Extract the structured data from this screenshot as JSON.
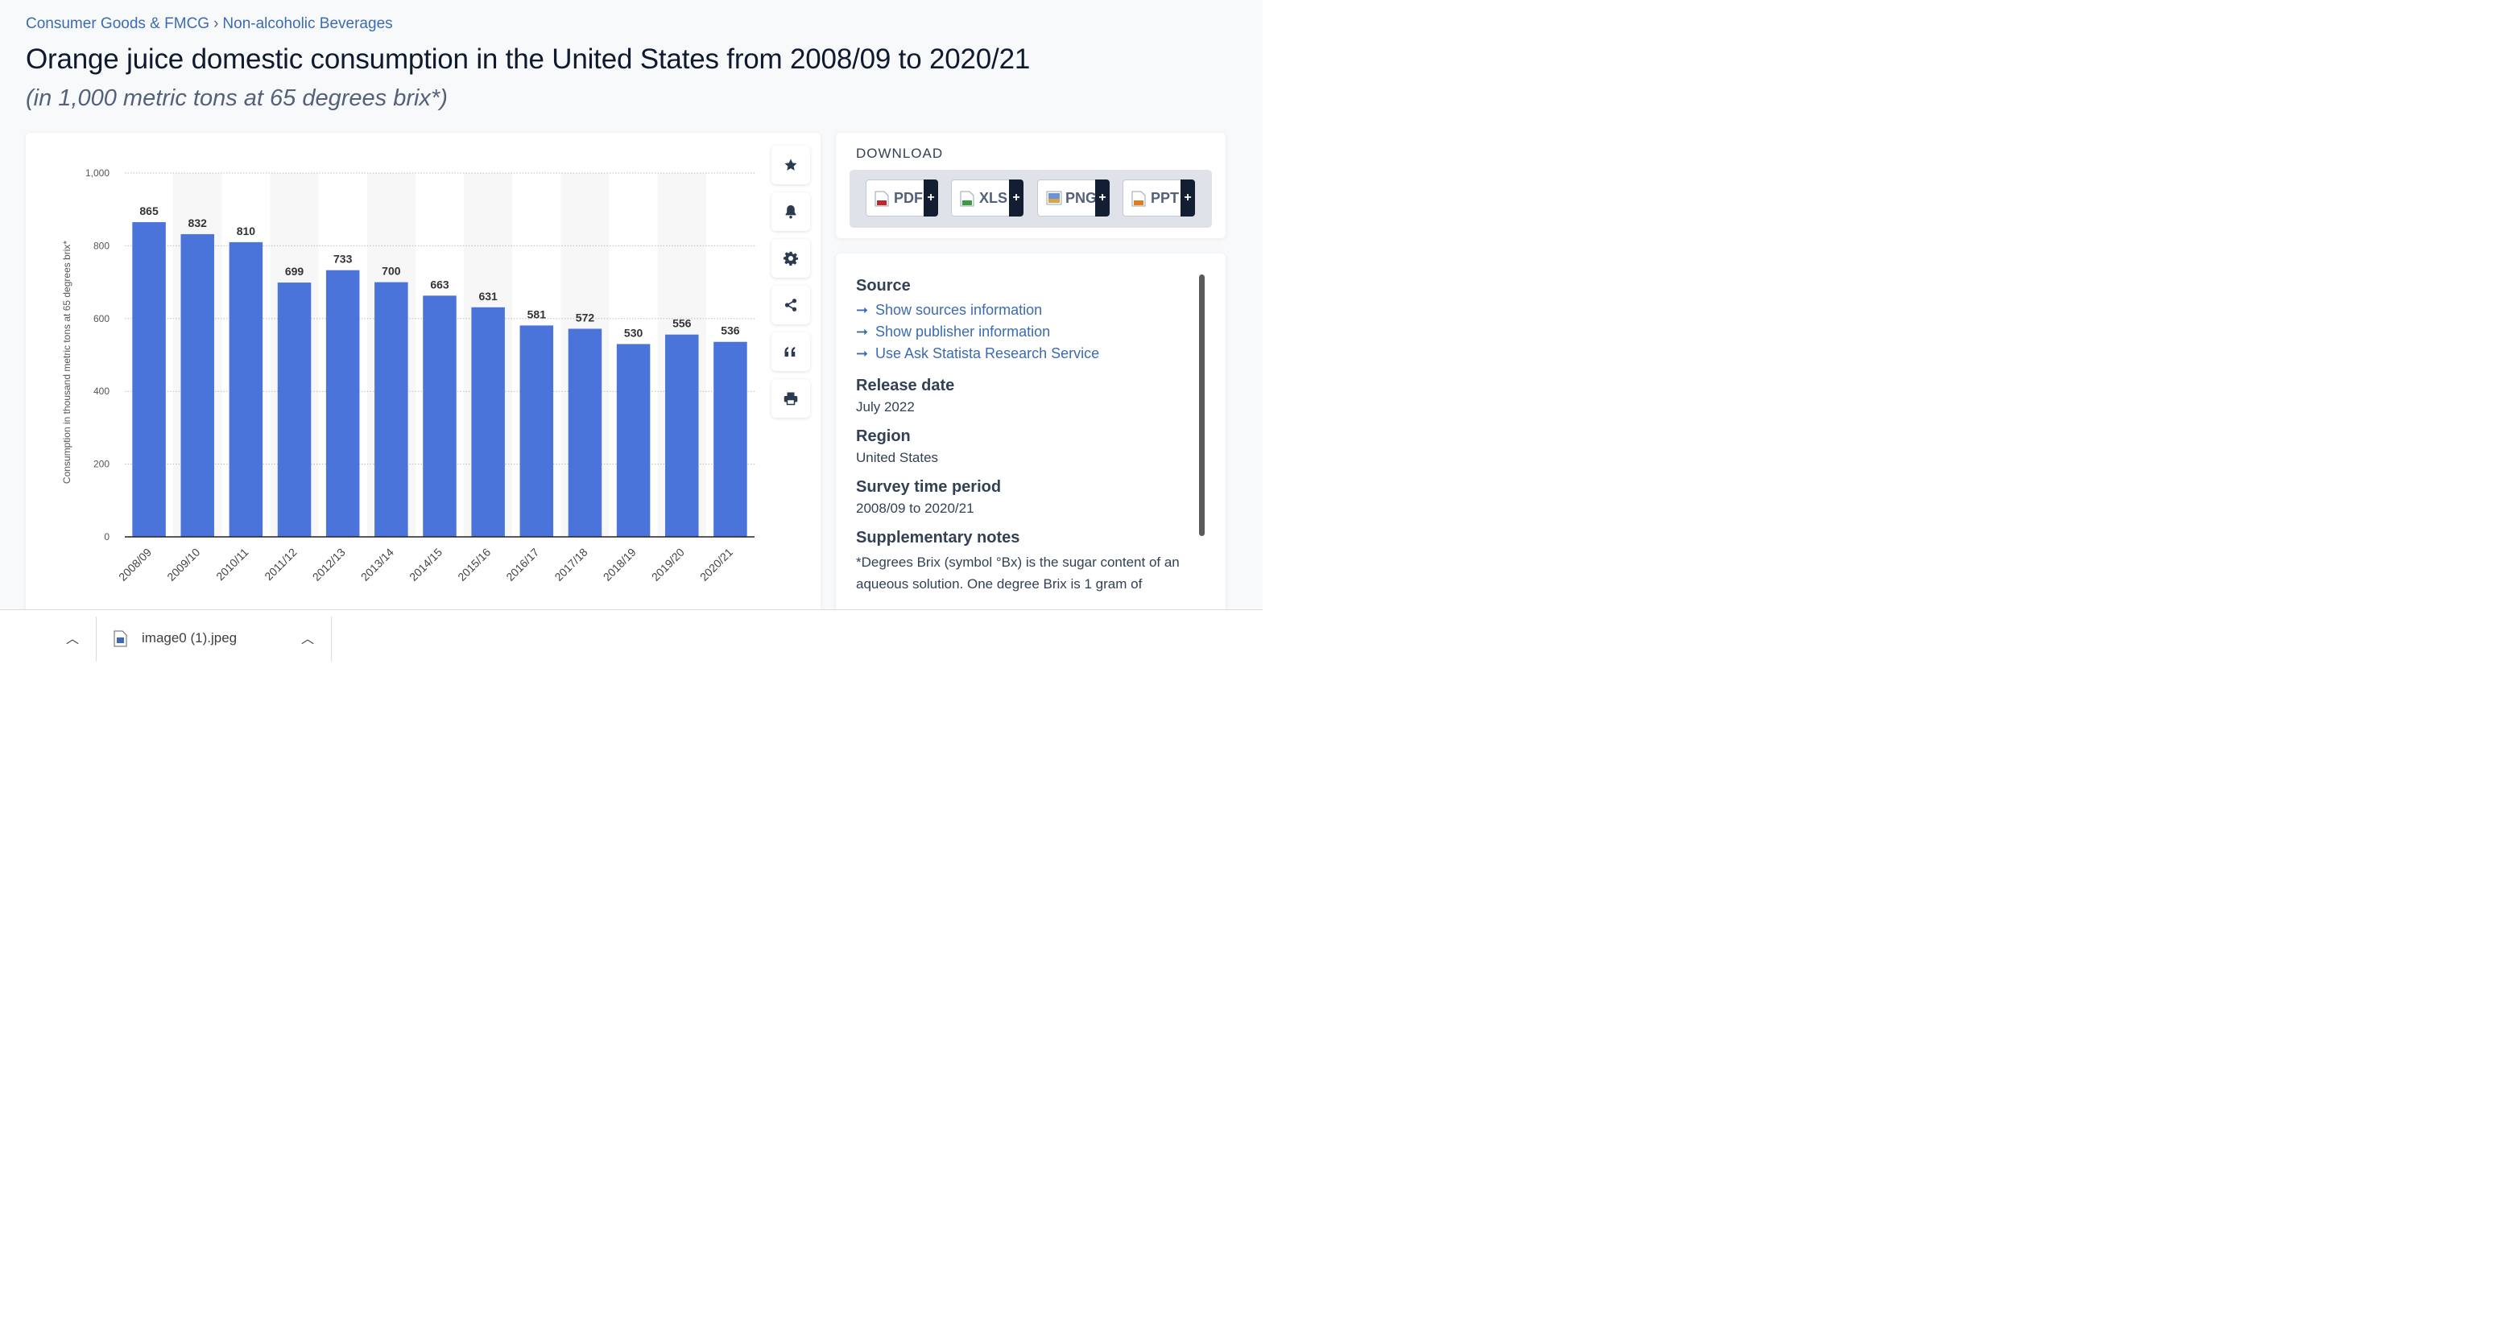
{
  "breadcrumb": {
    "items": [
      "Consumer Goods & FMCG",
      "Non-alcoholic Beverages"
    ],
    "separator": "›"
  },
  "title": "Orange juice domestic consumption in the United States from 2008/09 to 2020/21",
  "subtitle": "(in 1,000 metric tons at 65 degrees brix*)",
  "toolbar": {
    "icons": [
      "star-icon",
      "bell-icon",
      "gear-icon",
      "share-icon",
      "quote-icon",
      "print-icon"
    ]
  },
  "download": {
    "title": "DOWNLOAD",
    "buttons": [
      {
        "label": "PDF",
        "plus": "+",
        "color": "#c0272d"
      },
      {
        "label": "XLS",
        "plus": "+",
        "color": "#3a9c3e"
      },
      {
        "label": "PNG",
        "plus": "+",
        "color": "#3b6bb3"
      },
      {
        "label": "PPT",
        "plus": "+",
        "color": "#e07b20"
      }
    ]
  },
  "info": {
    "source_heading": "Source",
    "links": [
      "Show sources information",
      "Show publisher information",
      "Use Ask Statista Research Service"
    ],
    "release_heading": "Release date",
    "release_value": "July 2022",
    "region_heading": "Region",
    "region_value": "United States",
    "period_heading": "Survey time period",
    "period_value": "2008/09 to 2020/21",
    "notes_heading": "Supplementary notes",
    "notes_text": "*Degrees Brix (symbol °Bx) is the sugar content of an aqueous solution. One degree Brix is 1 gram of"
  },
  "chart_data": {
    "type": "bar",
    "categories": [
      "2008/09",
      "2009/10",
      "2010/11",
      "2011/12",
      "2012/13",
      "2013/14",
      "2014/15",
      "2015/16",
      "2016/17",
      "2017/18",
      "2018/19",
      "2019/20",
      "2020/21"
    ],
    "values": [
      865,
      832,
      810,
      699,
      733,
      700,
      663,
      631,
      581,
      572,
      530,
      556,
      536
    ],
    "ylabel": "Consumption in thousand metric tons at 65 degrees brix*",
    "yticks": [
      "0",
      "200",
      "400",
      "600",
      "800",
      "1,000"
    ],
    "ylim": [
      0,
      1000
    ],
    "bar_color": "#4a74da",
    "grid": true
  },
  "shelf": {
    "file_name": "image0 (1).jpeg"
  }
}
